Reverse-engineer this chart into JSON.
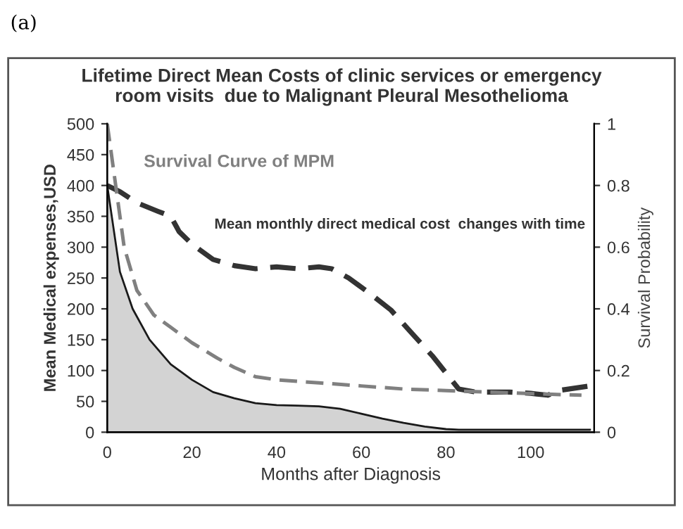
{
  "chart_data": {
    "type": "line",
    "title": "Lifetime Direct Mean Costs of clinic services or emergency\nroom visits  due to Malignant Pleural Mesothelioma",
    "xlabel": "Months after Diagnosis",
    "ylabel": "Mean Medical expenses,USD",
    "y2label": "Survival Probability",
    "annotations": [
      "(a)"
    ],
    "xlim": [
      0,
      115
    ],
    "xticks": [
      0,
      20,
      40,
      60,
      80,
      100
    ],
    "ylim": [
      0,
      500
    ],
    "yticks": [
      0,
      50,
      100,
      150,
      200,
      250,
      300,
      350,
      400,
      450,
      500
    ],
    "y2lim": [
      0,
      1
    ],
    "y2ticks": [
      0,
      {
        "value": 0.2,
        "label": "0.2"
      },
      {
        "value": 0.4,
        "label": "0.4"
      },
      {
        "value": 0.6,
        "label": "0.6"
      },
      {
        "value": 0.8,
        "label": "0.8"
      },
      1
    ],
    "grid": false,
    "legend": false,
    "marker": "none",
    "series": [
      {
        "type": "area",
        "color": "#1a1a1a",
        "x": [
          0,
          3,
          6,
          10,
          15,
          20,
          25,
          30,
          35,
          40,
          45,
          50,
          55,
          60,
          65,
          70,
          75,
          80,
          83,
          90,
          100,
          114
        ],
        "values": [
          400,
          260,
          200,
          150,
          110,
          85,
          65,
          55,
          47,
          44,
          43,
          42,
          38,
          30,
          22,
          15,
          9,
          5,
          4,
          4,
          4,
          4
        ],
        "line_style": "solid"
      },
      {
        "name": "Survival Curve of MPM",
        "axis": "y2",
        "color": "#808080",
        "line_style": "dashed",
        "x": [
          0,
          2,
          4,
          7,
          11,
          15,
          20,
          26,
          30,
          35,
          40,
          45,
          50,
          60,
          70,
          80,
          90,
          100,
          112
        ],
        "values": [
          1.0,
          0.8,
          0.6,
          0.46,
          0.38,
          0.34,
          0.29,
          0.24,
          0.21,
          0.18,
          0.17,
          0.165,
          0.16,
          0.15,
          0.14,
          0.135,
          0.13,
          0.125,
          0.12
        ]
      },
      {
        "name": "Mean monthly direct medical cost  changes with time",
        "color": "#333333",
        "line_style": "dashed",
        "x": [
          0,
          3,
          7,
          12,
          15,
          17,
          20,
          25,
          30,
          35,
          40,
          45,
          50,
          53,
          57,
          62,
          67,
          72,
          77,
          83,
          87,
          95,
          100,
          104,
          107,
          114
        ],
        "values": [
          400,
          390,
          372,
          358,
          350,
          325,
          305,
          280,
          270,
          265,
          268,
          265,
          268,
          265,
          250,
          225,
          198,
          160,
          122,
          70,
          65,
          65,
          63,
          60,
          68,
          75
        ]
      }
    ]
  }
}
